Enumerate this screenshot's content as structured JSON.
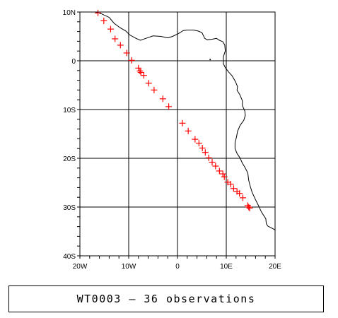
{
  "chart_data": {
    "type": "scatter",
    "title": "WT0003 - 36 observations",
    "xlim": [
      -20,
      20
    ],
    "ylim": [
      -40,
      10
    ],
    "x_ticks": [
      {
        "value": -20,
        "label": "20W"
      },
      {
        "value": -10,
        "label": "10W"
      },
      {
        "value": 0,
        "label": "0"
      },
      {
        "value": 10,
        "label": "10E"
      },
      {
        "value": 20,
        "label": "20E"
      }
    ],
    "y_ticks": [
      {
        "value": 10,
        "label": "10N"
      },
      {
        "value": 0,
        "label": "0"
      },
      {
        "value": -10,
        "label": "10S"
      },
      {
        "value": -20,
        "label": "20S"
      },
      {
        "value": -30,
        "label": "30S"
      },
      {
        "value": -40,
        "label": "40S"
      }
    ],
    "grid": true,
    "marker": "+",
    "marker_color": "#ff0000",
    "coast_color": "#000000",
    "series": [
      {
        "points": [
          [
            -16.3,
            9.8
          ],
          [
            -15.1,
            8.2
          ],
          [
            -13.7,
            6.5
          ],
          [
            -12.8,
            4.5
          ],
          [
            -11.7,
            3.2
          ],
          [
            -10.4,
            1.6
          ],
          [
            -9.4,
            0.1
          ],
          [
            -8.0,
            -1.5
          ],
          [
            -7.7,
            -2.1
          ],
          [
            -7.5,
            -2.4
          ],
          [
            -6.9,
            -3.0
          ],
          [
            -5.9,
            -4.6
          ],
          [
            -4.8,
            -6.0
          ],
          [
            -3.0,
            -7.8
          ],
          [
            -1.8,
            -9.4
          ],
          [
            1.0,
            -12.8
          ],
          [
            2.2,
            -14.4
          ],
          [
            3.6,
            -16.1
          ],
          [
            4.4,
            -16.9
          ],
          [
            5.1,
            -17.9
          ],
          [
            5.7,
            -18.8
          ],
          [
            6.4,
            -19.9
          ],
          [
            7.1,
            -20.8
          ],
          [
            7.8,
            -21.6
          ],
          [
            8.6,
            -22.6
          ],
          [
            9.3,
            -23.2
          ],
          [
            9.6,
            -23.8
          ],
          [
            10.3,
            -24.9
          ],
          [
            10.9,
            -25.3
          ],
          [
            11.5,
            -26.2
          ],
          [
            12.2,
            -26.8
          ],
          [
            12.7,
            -27.2
          ],
          [
            13.4,
            -28.1
          ],
          [
            14.4,
            -29.7
          ],
          [
            14.6,
            -30.0
          ],
          [
            14.8,
            -30.2
          ]
        ]
      }
    ],
    "coastline": [
      [
        -16.8,
        10.0
      ],
      [
        -15.5,
        9.6
      ],
      [
        -14.0,
        8.9
      ],
      [
        -13.6,
        8.4
      ],
      [
        -13.0,
        7.7
      ],
      [
        -11.8,
        6.8
      ],
      [
        -10.6,
        6.1
      ],
      [
        -9.8,
        5.3
      ],
      [
        -8.5,
        4.6
      ],
      [
        -7.6,
        4.2
      ],
      [
        -6.5,
        4.6
      ],
      [
        -5.0,
        5.1
      ],
      [
        -3.4,
        5.0
      ],
      [
        -2.0,
        4.7
      ],
      [
        -1.0,
        5.0
      ],
      [
        0.2,
        5.6
      ],
      [
        1.2,
        6.2
      ],
      [
        2.0,
        6.3
      ],
      [
        3.3,
        6.3
      ],
      [
        4.2,
        6.1
      ],
      [
        5.0,
        5.8
      ],
      [
        5.6,
        4.6
      ],
      [
        6.1,
        4.3
      ],
      [
        7.0,
        4.4
      ],
      [
        8.0,
        4.6
      ],
      [
        8.6,
        4.2
      ],
      [
        9.3,
        3.9
      ],
      [
        9.7,
        3.2
      ],
      [
        9.8,
        2.0
      ],
      [
        9.6,
        1.4
      ],
      [
        9.4,
        0.8
      ],
      [
        9.4,
        0.2
      ],
      [
        9.4,
        -0.6
      ],
      [
        9.8,
        -1.4
      ],
      [
        10.5,
        -2.3
      ],
      [
        11.2,
        -3.1
      ],
      [
        11.9,
        -4.3
      ],
      [
        12.3,
        -5.3
      ],
      [
        12.2,
        -6.0
      ],
      [
        12.8,
        -7.0
      ],
      [
        13.3,
        -8.2
      ],
      [
        13.3,
        -9.2
      ],
      [
        13.8,
        -10.3
      ],
      [
        13.9,
        -11.2
      ],
      [
        13.6,
        -12.2
      ],
      [
        12.8,
        -13.3
      ],
      [
        12.3,
        -14.5
      ],
      [
        12.1,
        -15.6
      ],
      [
        11.8,
        -16.8
      ],
      [
        11.8,
        -18.0
      ],
      [
        12.2,
        -19.0
      ],
      [
        12.8,
        -19.9
      ],
      [
        13.3,
        -21.0
      ],
      [
        13.9,
        -22.0
      ],
      [
        14.4,
        -23.0
      ],
      [
        14.6,
        -24.5
      ],
      [
        14.9,
        -25.7
      ],
      [
        15.3,
        -27.0
      ],
      [
        16.0,
        -28.5
      ],
      [
        16.5,
        -29.5
      ],
      [
        17.2,
        -31.0
      ],
      [
        18.1,
        -32.4
      ],
      [
        18.2,
        -33.4
      ],
      [
        18.5,
        -33.9
      ],
      [
        19.5,
        -34.4
      ],
      [
        20.0,
        -34.7
      ]
    ],
    "island": [
      [
        6.6,
        0.2
      ],
      [
        6.8,
        0.3
      ]
    ]
  },
  "caption": {
    "text": "WT0003 – 36 observations"
  }
}
